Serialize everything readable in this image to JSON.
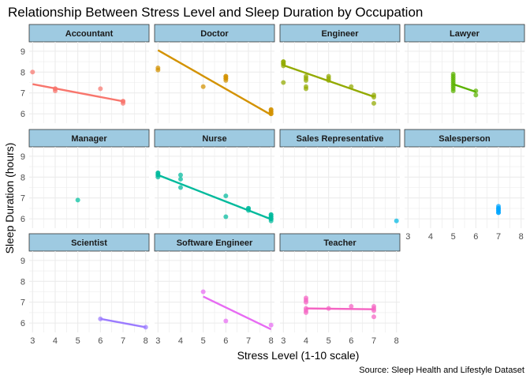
{
  "chart_data": {
    "type": "scatter",
    "title": "Relationship Between Stress Level and Sleep Duration by Occupation",
    "xlabel": "Stress Level (1-10 scale)",
    "ylabel": "Sleep Duration (hours)",
    "caption": "Source: Sleep Health and Lifestyle Dataset",
    "xlim": [
      2.85,
      8.15
    ],
    "ylim": [
      5.55,
      9.45
    ],
    "x_ticks": [
      3,
      4,
      5,
      6,
      7,
      8
    ],
    "y_ticks": [
      6,
      7,
      8,
      9
    ],
    "grid": true,
    "strip_fill": "#9ecae1",
    "grid_color": "#ebebeb",
    "panels": [
      {
        "name": "Accountant",
        "color": "#F8766D",
        "points": [
          [
            3,
            8.0
          ],
          [
            4,
            7.2
          ],
          [
            4,
            7.1
          ],
          [
            4,
            7.2
          ],
          [
            6,
            7.2
          ],
          [
            7,
            6.6
          ],
          [
            7,
            6.5
          ],
          [
            7,
            6.6
          ]
        ],
        "trend": [
          [
            3,
            7.42
          ],
          [
            7,
            6.6
          ]
        ]
      },
      {
        "name": "Doctor",
        "color": "#D39200",
        "points": [
          [
            3,
            8.2
          ],
          [
            3,
            8.1
          ],
          [
            5,
            7.3
          ],
          [
            6,
            7.8
          ],
          [
            6,
            7.7
          ],
          [
            6,
            7.6
          ],
          [
            6,
            7.8
          ],
          [
            6,
            7.7
          ],
          [
            8,
            6.2
          ],
          [
            8,
            6.1
          ],
          [
            8,
            6.0
          ],
          [
            8,
            6.1
          ],
          [
            8,
            6.2
          ],
          [
            8,
            6.0
          ]
        ],
        "trend": [
          [
            3,
            9.05
          ],
          [
            8,
            5.95
          ]
        ]
      },
      {
        "name": "Engineer",
        "color": "#93AA00",
        "points": [
          [
            3,
            8.5
          ],
          [
            3,
            8.4
          ],
          [
            3,
            8.3
          ],
          [
            3,
            8.5
          ],
          [
            3,
            8.4
          ],
          [
            3,
            7.5
          ],
          [
            4,
            7.8
          ],
          [
            4,
            7.7
          ],
          [
            4,
            7.3
          ],
          [
            4,
            7.2
          ],
          [
            4,
            7.6
          ],
          [
            5,
            7.8
          ],
          [
            5,
            7.7
          ],
          [
            5,
            7.6
          ],
          [
            6,
            7.3
          ],
          [
            7,
            6.9
          ],
          [
            7,
            6.8
          ],
          [
            7,
            6.5
          ]
        ],
        "trend": [
          [
            3,
            8.33
          ],
          [
            7,
            6.82
          ]
        ]
      },
      {
        "name": "Lawyer",
        "color": "#5BB300",
        "points": [
          [
            5,
            7.9
          ],
          [
            5,
            7.8
          ],
          [
            5,
            7.7
          ],
          [
            5,
            7.6
          ],
          [
            5,
            7.5
          ],
          [
            5,
            7.4
          ],
          [
            5,
            7.3
          ],
          [
            5,
            7.2
          ],
          [
            5,
            7.1
          ],
          [
            6,
            7.1
          ],
          [
            6,
            6.9
          ]
        ],
        "trend": [
          [
            5,
            7.42
          ],
          [
            6,
            7.05
          ]
        ]
      },
      {
        "name": "Manager",
        "color": "#00C19F",
        "points": [
          [
            5,
            6.9
          ]
        ],
        "trend": []
      },
      {
        "name": "Nurse",
        "color": "#00BA9C",
        "points": [
          [
            3,
            8.2
          ],
          [
            3,
            8.1
          ],
          [
            3,
            8.0
          ],
          [
            3,
            8.2
          ],
          [
            3,
            8.1
          ],
          [
            4,
            8.1
          ],
          [
            4,
            7.9
          ],
          [
            4,
            7.5
          ],
          [
            6,
            7.1
          ],
          [
            6,
            6.1
          ],
          [
            7,
            6.5
          ],
          [
            7,
            6.4
          ],
          [
            7,
            6.5
          ],
          [
            8,
            6.2
          ],
          [
            8,
            6.1
          ],
          [
            8,
            6.0
          ],
          [
            8,
            6.1
          ],
          [
            8,
            5.9
          ],
          [
            8,
            6.2
          ],
          [
            8,
            6.0
          ]
        ],
        "trend": [
          [
            3,
            8.1
          ],
          [
            8,
            5.98
          ]
        ]
      },
      {
        "name": "Sales Representative",
        "color": "#00B9E3",
        "points": [
          [
            8,
            5.9
          ]
        ],
        "trend": []
      },
      {
        "name": "Salesperson",
        "color": "#00A5FF",
        "points": [
          [
            7,
            6.5
          ],
          [
            7,
            6.4
          ],
          [
            7,
            6.3
          ],
          [
            7,
            6.5
          ],
          [
            7,
            6.4
          ],
          [
            7,
            6.3
          ],
          [
            7,
            6.6
          ]
        ],
        "trend": []
      },
      {
        "name": "Scientist",
        "color": "#9B7BFF",
        "points": [
          [
            6,
            6.2
          ],
          [
            8,
            5.8
          ]
        ],
        "trend": [
          [
            6,
            6.2
          ],
          [
            8,
            5.8
          ]
        ]
      },
      {
        "name": "Software Engineer",
        "color": "#E76BF3",
        "points": [
          [
            5,
            7.5
          ],
          [
            6,
            6.1
          ],
          [
            8,
            5.9
          ]
        ],
        "trend": [
          [
            5,
            7.27
          ],
          [
            8,
            5.7
          ]
        ]
      },
      {
        "name": "Teacher",
        "color": "#F564C3",
        "points": [
          [
            4,
            7.2
          ],
          [
            4,
            7.1
          ],
          [
            4,
            7.0
          ],
          [
            4,
            6.6
          ],
          [
            4,
            6.5
          ],
          [
            4,
            6.7
          ],
          [
            5,
            6.7
          ],
          [
            6,
            6.8
          ],
          [
            7,
            6.8
          ],
          [
            7,
            6.6
          ],
          [
            7,
            6.3
          ],
          [
            7,
            6.7
          ]
        ],
        "trend": [
          [
            4,
            6.7
          ],
          [
            7,
            6.66
          ]
        ]
      }
    ]
  }
}
